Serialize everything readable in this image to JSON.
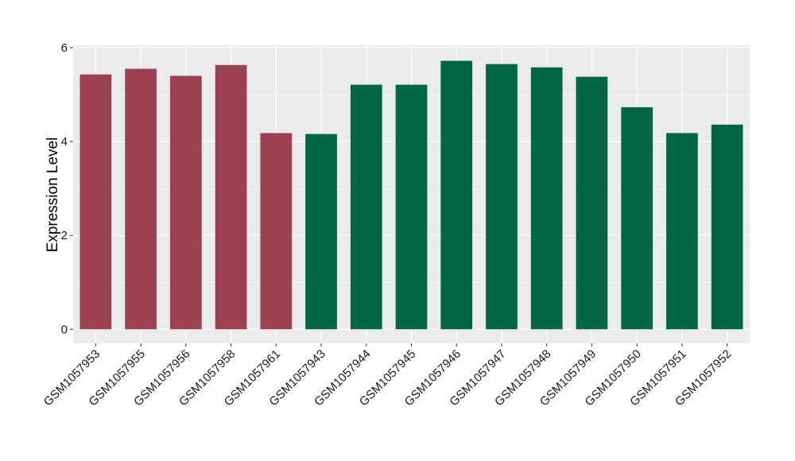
{
  "chart_data": {
    "type": "bar",
    "title": "",
    "xlabel": "",
    "ylabel": "Expression Level",
    "ylim": [
      -0.3,
      6.05
    ],
    "yticks": [
      0,
      2,
      4,
      6
    ],
    "grid": true,
    "categories": [
      "GSM1057953",
      "GSM1057955",
      "GSM1057956",
      "GSM1057958",
      "GSM1057961",
      "GSM1057943",
      "GSM1057944",
      "GSM1057945",
      "GSM1057946",
      "GSM1057947",
      "GSM1057948",
      "GSM1057949",
      "GSM1057950",
      "GSM1057951",
      "GSM1057952"
    ],
    "values": [
      5.43,
      5.55,
      5.4,
      5.63,
      4.18,
      4.16,
      5.21,
      5.21,
      5.72,
      5.65,
      5.58,
      5.38,
      4.73,
      4.18,
      4.36
    ],
    "groups": [
      "a",
      "a",
      "a",
      "a",
      "a",
      "b",
      "b",
      "b",
      "b",
      "b",
      "b",
      "b",
      "b",
      "b",
      "b"
    ],
    "colors": {
      "a": "#9b4150",
      "b": "#006644"
    },
    "panel_background": "#ebebeb",
    "gridline_color": "#ffffff"
  }
}
